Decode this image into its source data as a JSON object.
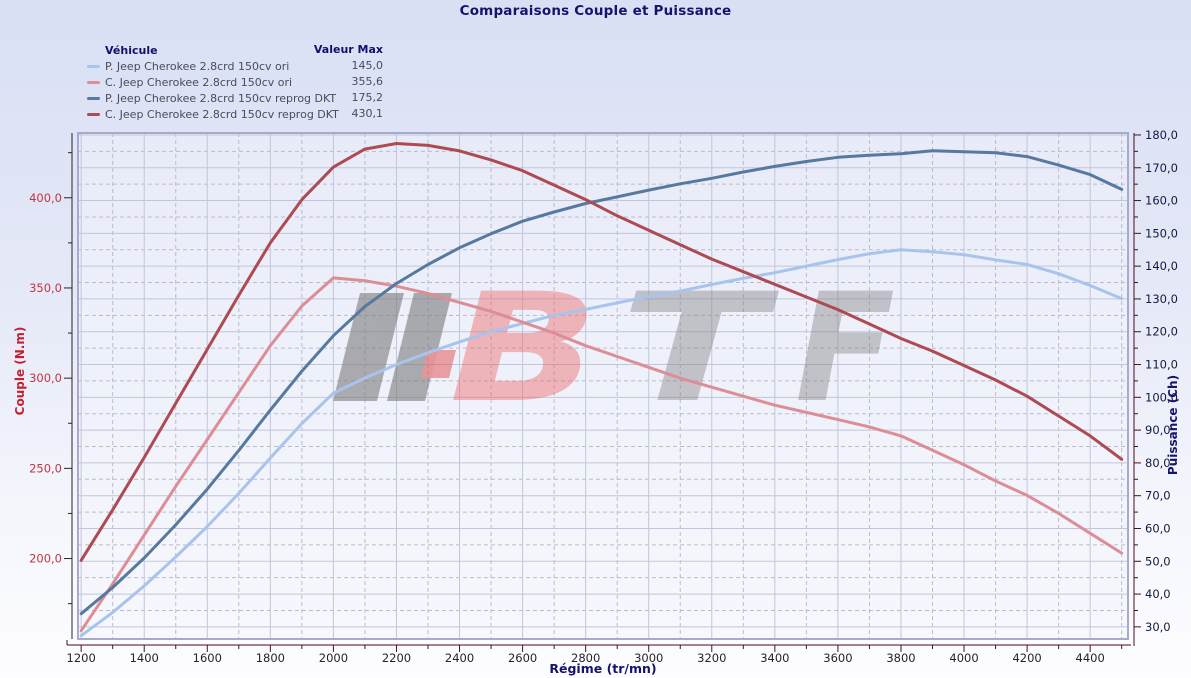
{
  "title": "Comparaisons Couple et Puissance",
  "legend": {
    "header_vehicle": "Véhicule",
    "header_max": "Valeur Max",
    "items": [
      {
        "label": "P. Jeep Cherokee 2.8crd 150cv ori",
        "max": "145,0",
        "color": "#a9c4ec"
      },
      {
        "label": "C. Jeep Cherokee 2.8crd 150cv ori",
        "max": "355,6",
        "color": "#dd8d96"
      },
      {
        "label": "P. Jeep Cherokee 2.8crd 150cv reprog DKT",
        "max": "175,2",
        "color": "#56799f"
      },
      {
        "label": "C. Jeep Cherokee 2.8crd 150cv reprog DKT",
        "max": "430,1",
        "color": "#ad4a52"
      }
    ]
  },
  "watermark": {
    "letters": [
      {
        "t": "B",
        "c": "#ec6666",
        "o": 0.72,
        "x": 449,
        "len": 150
      },
      {
        "t": "T",
        "c": "#7b7b7b",
        "o": 0.65,
        "x": 620,
        "len": 145
      },
      {
        "t": "F",
        "c": "#7b7b7b",
        "o": 0.65,
        "x": 795,
        "len": 100
      }
    ],
    "bar_color": "#7b7b7b",
    "accent_color": "#e25858"
  },
  "chart_data": {
    "type": "line",
    "title": "Comparaisons Couple et Puissance",
    "xlabel": "Régime (tr/mn)",
    "x_range": [
      1190,
      4520
    ],
    "x_ticks": [
      1200,
      1400,
      1600,
      1800,
      2000,
      2200,
      2400,
      2600,
      2800,
      3000,
      3200,
      3400,
      3600,
      3800,
      4000,
      4200,
      4400
    ],
    "y_left": {
      "label": "Couple (N.m)",
      "color": "#c23540",
      "range": [
        155.4,
        435.9
      ],
      "ticks": [
        200,
        250,
        300,
        350,
        400
      ]
    },
    "y_right": {
      "label": "Puissance (Ch)",
      "color": "#181840",
      "range": [
        26.3,
        180.6
      ],
      "ticks": [
        30,
        40,
        50,
        60,
        70,
        80,
        90,
        100,
        110,
        120,
        130,
        140,
        150,
        160,
        170,
        180
      ]
    },
    "x": [
      1200,
      1300,
      1400,
      1500,
      1600,
      1700,
      1800,
      1900,
      2000,
      2100,
      2200,
      2300,
      2400,
      2500,
      2600,
      2700,
      2800,
      2900,
      3000,
      3100,
      3200,
      3300,
      3400,
      3500,
      3600,
      3700,
      3800,
      3900,
      4000,
      4100,
      4200,
      4300,
      4400,
      4500
    ],
    "series": [
      {
        "name": "P. Jeep Cherokee 2.8crd 150cv ori",
        "unit": "Ch",
        "axis": "right",
        "color": "#a9c4ec",
        "max": 145.0,
        "values": [
          27.3,
          34.4,
          42.5,
          51.3,
          60.6,
          70.7,
          81.5,
          92.0,
          101.3,
          105.9,
          110.0,
          113.6,
          116.9,
          120.0,
          122.5,
          125.0,
          126.8,
          128.8,
          130.7,
          132.4,
          134.4,
          136.3,
          138.0,
          140.0,
          142.0,
          143.8,
          145.0,
          144.4,
          143.5,
          141.9,
          140.5,
          137.7,
          134.1,
          130.1
        ]
      },
      {
        "name": "C. Jeep Cherokee 2.8crd 150cv ori",
        "unit": "N.m",
        "axis": "left",
        "color": "#dd8d96",
        "max": 355.6,
        "values": [
          160,
          186,
          213,
          240,
          266,
          292,
          318,
          340,
          355.6,
          354,
          351,
          347,
          342,
          337,
          331,
          325,
          318,
          312,
          306,
          300,
          295,
          290,
          285,
          281,
          277,
          273,
          268,
          260,
          252,
          243,
          235,
          225,
          214,
          203
        ]
      },
      {
        "name": "P. Jeep Cherokee 2.8crd 150cv reprog DKT",
        "unit": "Ch",
        "axis": "right",
        "color": "#56799f",
        "max": 175.2,
        "values": [
          34.0,
          42.0,
          51.0,
          61.1,
          72.0,
          83.8,
          96.1,
          108.0,
          118.8,
          127.7,
          134.7,
          140.5,
          145.6,
          149.9,
          153.7,
          156.5,
          159.1,
          161.1,
          163.2,
          165.1,
          166.8,
          168.7,
          170.4,
          171.9,
          173.2,
          173.8,
          174.3,
          175.2,
          174.9,
          174.6,
          173.4,
          170.8,
          167.9,
          163.4
        ]
      },
      {
        "name": "C. Jeep Cherokee 2.8crd 150cv reprog DKT",
        "unit": "N.m",
        "axis": "left",
        "color": "#ad4a52",
        "max": 430.1,
        "values": [
          199,
          227,
          256,
          286,
          316,
          346,
          375,
          399,
          417,
          427,
          430.1,
          429,
          426,
          421,
          415,
          407,
          399,
          390,
          382,
          374,
          366,
          359,
          352,
          345,
          338,
          330,
          322,
          315,
          307,
          299,
          290,
          279,
          268,
          255
        ]
      }
    ]
  }
}
